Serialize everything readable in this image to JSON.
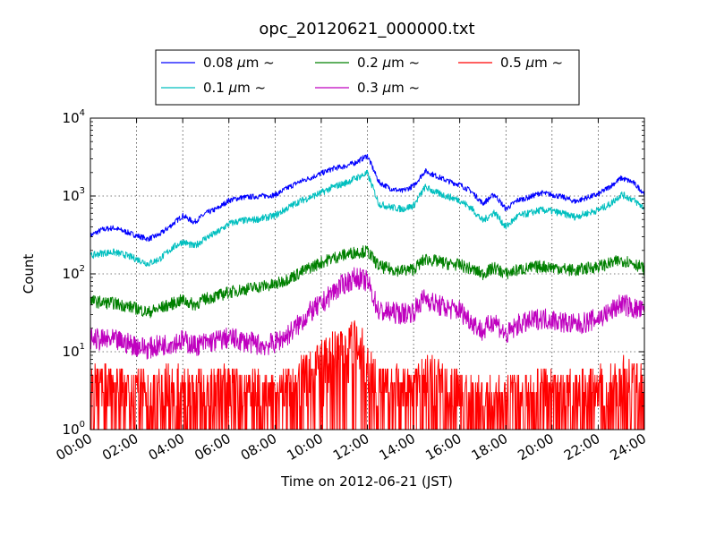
{
  "chart_data": {
    "type": "line",
    "title": "opc_20120621_000000.txt",
    "xlabel": "Time on 2012-06-21 (JST)",
    "ylabel": "Count",
    "xlim": [
      "00:00",
      "24:00"
    ],
    "x_ticks": [
      "00:00",
      "02:00",
      "04:00",
      "06:00",
      "08:00",
      "10:00",
      "12:00",
      "14:00",
      "16:00",
      "18:00",
      "20:00",
      "22:00",
      "24:00"
    ],
    "y_scale": "log",
    "ylim": [
      1,
      10000
    ],
    "y_ticks": [
      {
        "base": "10",
        "exp": "0"
      },
      {
        "base": "10",
        "exp": "1"
      },
      {
        "base": "10",
        "exp": "2"
      },
      {
        "base": "10",
        "exp": "3"
      },
      {
        "base": "10",
        "exp": "4"
      }
    ],
    "grid": true,
    "legend_position": "top-center",
    "x_hours": [
      0,
      0.5,
      1,
      1.5,
      2,
      2.5,
      3,
      3.5,
      4,
      4.5,
      5,
      5.5,
      6,
      6.5,
      7,
      7.5,
      8,
      8.5,
      9,
      9.5,
      10,
      10.5,
      11,
      11.5,
      12,
      12.5,
      13,
      13.5,
      14,
      14.5,
      15,
      15.5,
      16,
      16.5,
      17,
      17.5,
      18,
      18.5,
      19,
      19.5,
      20,
      20.5,
      21,
      21.5,
      22,
      22.5,
      23,
      23.5,
      24
    ],
    "series": [
      {
        "name": "0.08",
        "unit": "μm",
        "suffix": "~",
        "color": "#0000ff",
        "values": [
          310,
          370,
          390,
          350,
          310,
          280,
          320,
          420,
          560,
          460,
          600,
          690,
          880,
          950,
          980,
          1000,
          1030,
          1250,
          1500,
          1700,
          1950,
          2250,
          2400,
          2700,
          3300,
          1500,
          1250,
          1150,
          1350,
          2100,
          1800,
          1550,
          1400,
          1150,
          800,
          1050,
          680,
          880,
          960,
          1100,
          1040,
          960,
          850,
          950,
          1050,
          1320,
          1700,
          1500,
          1080
        ]
      },
      {
        "name": "0.1",
        "unit": "μm",
        "suffix": "~",
        "color": "#00bfbf",
        "values": [
          170,
          185,
          190,
          175,
          155,
          135,
          155,
          210,
          260,
          225,
          290,
          340,
          440,
          480,
          490,
          520,
          560,
          690,
          840,
          960,
          1100,
          1300,
          1450,
          1700,
          1950,
          790,
          720,
          680,
          750,
          1300,
          1100,
          980,
          880,
          700,
          480,
          620,
          400,
          550,
          600,
          660,
          640,
          590,
          540,
          600,
          660,
          780,
          1050,
          900,
          700
        ]
      },
      {
        "name": "0.2",
        "unit": "μm",
        "suffix": "~",
        "color": "#008000",
        "values": [
          45,
          43,
          42,
          39,
          36,
          32,
          36,
          41,
          46,
          40,
          48,
          52,
          58,
          62,
          66,
          70,
          72,
          85,
          100,
          120,
          140,
          160,
          175,
          190,
          195,
          125,
          115,
          110,
          115,
          155,
          145,
          135,
          130,
          115,
          100,
          120,
          100,
          112,
          118,
          125,
          122,
          116,
          110,
          118,
          125,
          135,
          150,
          140,
          115
        ]
      },
      {
        "name": "0.3",
        "unit": "μm",
        "suffix": "~",
        "color": "#bf00bf",
        "values": [
          15,
          14,
          14,
          13,
          12,
          11,
          12,
          13,
          14,
          12,
          13,
          14,
          15,
          14,
          13,
          12,
          13,
          16,
          22,
          32,
          40,
          58,
          75,
          90,
          80,
          33,
          32,
          31,
          33,
          50,
          40,
          36,
          34,
          25,
          18,
          26,
          16,
          22,
          24,
          27,
          26,
          24,
          22,
          24,
          27,
          32,
          42,
          36,
          33
        ]
      },
      {
        "name": "0.5",
        "unit": "μm",
        "suffix": "~",
        "color": "#ff0000",
        "values": [
          3,
          3,
          3,
          3,
          3,
          2.5,
          3,
          3,
          3,
          2.5,
          3,
          3,
          3,
          3,
          3,
          2.5,
          2.5,
          3,
          4,
          5,
          6,
          8,
          10,
          12,
          7,
          3,
          3,
          3,
          3,
          4,
          4,
          3,
          3,
          2.5,
          2,
          2.5,
          2,
          2.5,
          2.5,
          3,
          3,
          2.5,
          2.5,
          2.5,
          3,
          3,
          4,
          3.5,
          3
        ]
      }
    ]
  }
}
